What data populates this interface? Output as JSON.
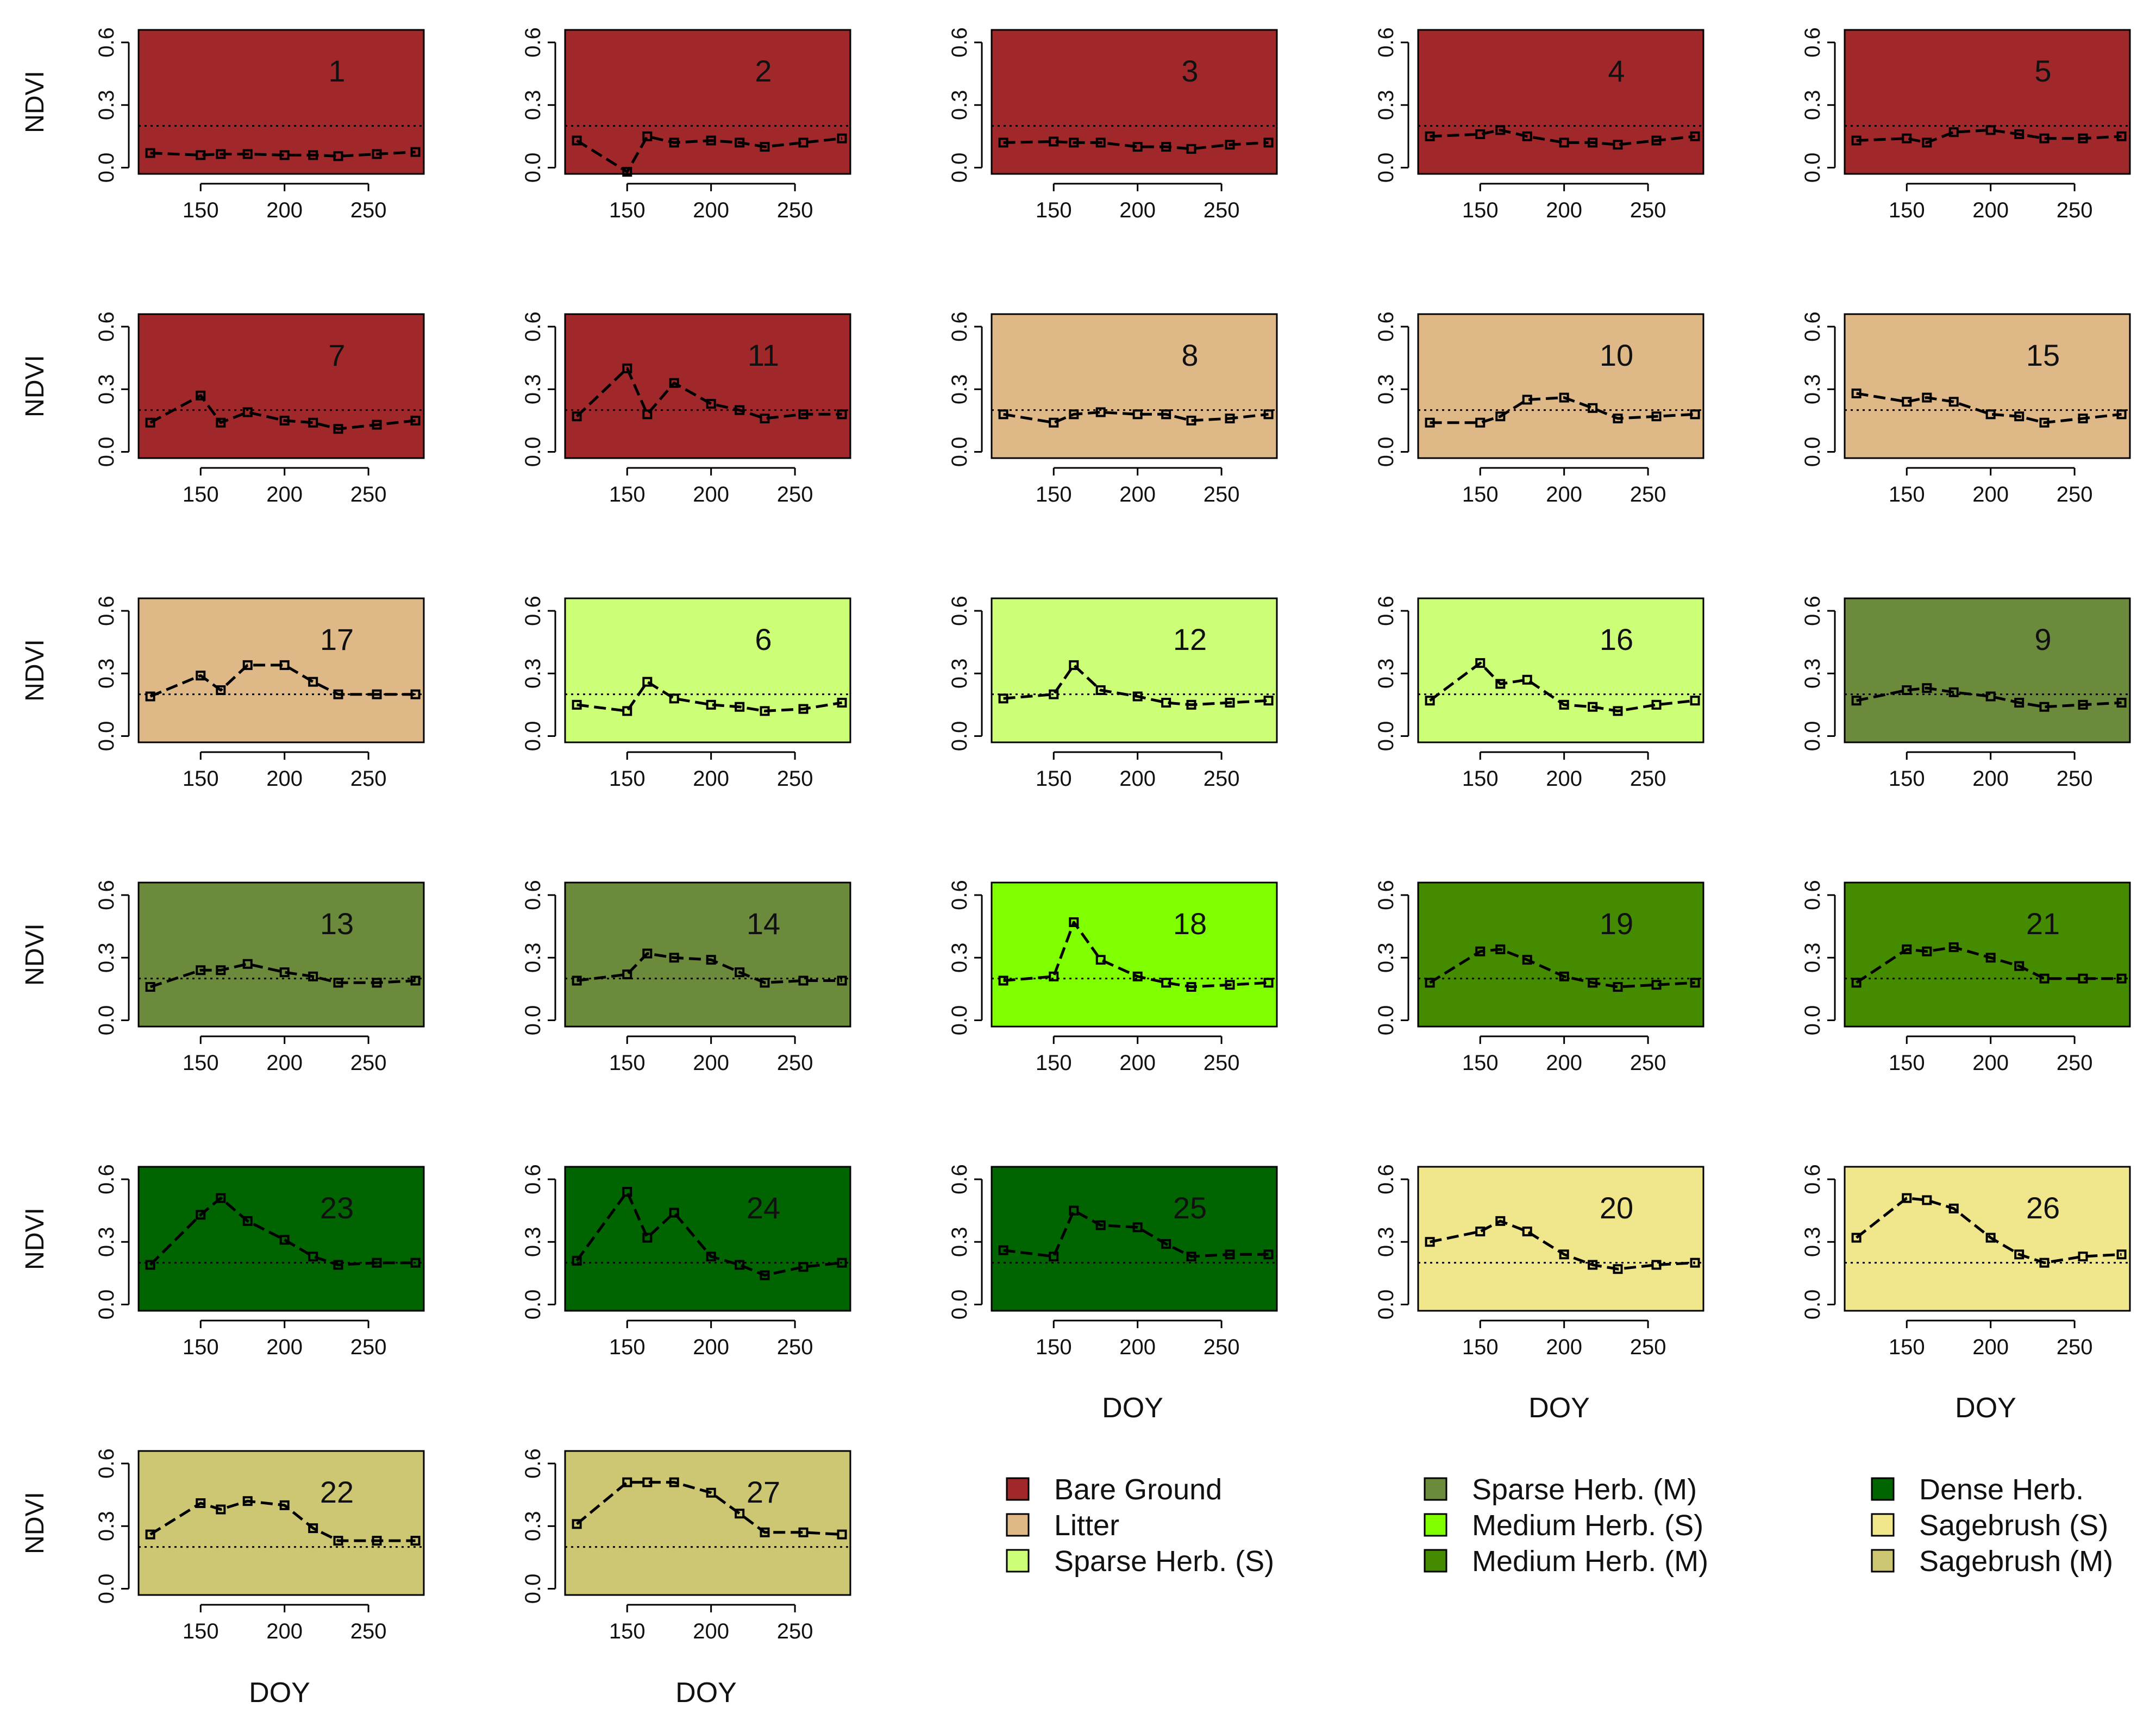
{
  "figure": {
    "ylabel": "NDVI",
    "xlabel": "DOY"
  },
  "chart_data": {
    "type": "line",
    "x_axis": {
      "label": "DOY",
      "range": [
        113,
        283
      ],
      "ticks": [
        150,
        200,
        250
      ]
    },
    "y_axis": {
      "label": "NDVI",
      "range": [
        -0.03,
        0.66
      ],
      "ticks": [
        "0.0",
        "0.3",
        "0.6"
      ]
    },
    "threshold": 0.2,
    "x": [
      120,
      150,
      162,
      178,
      200,
      217,
      232,
      255,
      278
    ],
    "panels": [
      {
        "id": "1",
        "class": "Bare Ground",
        "values": [
          0.07,
          0.06,
          0.065,
          0.065,
          0.06,
          0.06,
          0.055,
          0.065,
          0.075
        ]
      },
      {
        "id": "2",
        "class": "Bare Ground",
        "values": [
          0.13,
          -0.02,
          0.15,
          0.12,
          0.13,
          0.12,
          0.1,
          0.12,
          0.14
        ]
      },
      {
        "id": "3",
        "class": "Bare Ground",
        "values": [
          0.12,
          0.125,
          0.12,
          0.12,
          0.1,
          0.1,
          0.09,
          0.11,
          0.12
        ]
      },
      {
        "id": "4",
        "class": "Bare Ground",
        "values": [
          0.15,
          0.16,
          0.18,
          0.15,
          0.12,
          0.12,
          0.11,
          0.13,
          0.15
        ]
      },
      {
        "id": "5",
        "class": "Bare Ground",
        "values": [
          0.13,
          0.14,
          0.12,
          0.17,
          0.18,
          0.16,
          0.14,
          0.14,
          0.15
        ]
      },
      {
        "id": "7",
        "class": "Bare Ground",
        "values": [
          0.14,
          0.27,
          0.14,
          0.19,
          0.15,
          0.14,
          0.11,
          0.13,
          0.15
        ]
      },
      {
        "id": "11",
        "class": "Bare Ground",
        "values": [
          0.17,
          0.4,
          0.18,
          0.33,
          0.23,
          0.2,
          0.16,
          0.18,
          0.18
        ]
      },
      {
        "id": "8",
        "class": "Litter",
        "values": [
          0.18,
          0.14,
          0.18,
          0.19,
          0.18,
          0.18,
          0.15,
          0.16,
          0.18
        ]
      },
      {
        "id": "10",
        "class": "Litter",
        "values": [
          0.14,
          0.14,
          0.17,
          0.25,
          0.26,
          0.21,
          0.16,
          0.17,
          0.18
        ]
      },
      {
        "id": "15",
        "class": "Litter",
        "values": [
          0.28,
          0.24,
          0.26,
          0.24,
          0.18,
          0.17,
          0.14,
          0.16,
          0.18
        ]
      },
      {
        "id": "17",
        "class": "Litter",
        "values": [
          0.19,
          0.29,
          0.22,
          0.34,
          0.34,
          0.26,
          0.2,
          0.2,
          0.2
        ]
      },
      {
        "id": "6",
        "class": "Sparse Herb. (S)",
        "values": [
          0.15,
          0.12,
          0.26,
          0.18,
          0.15,
          0.14,
          0.12,
          0.13,
          0.16
        ]
      },
      {
        "id": "12",
        "class": "Sparse Herb. (S)",
        "values": [
          0.18,
          0.2,
          0.34,
          0.22,
          0.19,
          0.16,
          0.15,
          0.16,
          0.17
        ]
      },
      {
        "id": "16",
        "class": "Sparse Herb. (S)",
        "values": [
          0.17,
          0.35,
          0.25,
          0.27,
          0.15,
          0.14,
          0.12,
          0.15,
          0.17
        ]
      },
      {
        "id": "9",
        "class": "Sparse Herb. (M)",
        "values": [
          0.17,
          0.22,
          0.23,
          0.21,
          0.19,
          0.16,
          0.14,
          0.15,
          0.16
        ]
      },
      {
        "id": "13",
        "class": "Sparse Herb. (M)",
        "values": [
          0.16,
          0.24,
          0.24,
          0.27,
          0.23,
          0.21,
          0.18,
          0.18,
          0.19
        ]
      },
      {
        "id": "14",
        "class": "Sparse Herb. (M)",
        "values": [
          0.19,
          0.22,
          0.32,
          0.3,
          0.29,
          0.23,
          0.18,
          0.19,
          0.19
        ]
      },
      {
        "id": "18",
        "class": "Medium Herb. (S)",
        "values": [
          0.19,
          0.21,
          0.47,
          0.29,
          0.21,
          0.18,
          0.16,
          0.17,
          0.18
        ]
      },
      {
        "id": "19",
        "class": "Medium Herb. (M)",
        "values": [
          0.18,
          0.33,
          0.34,
          0.29,
          0.21,
          0.18,
          0.16,
          0.17,
          0.18
        ]
      },
      {
        "id": "21",
        "class": "Medium Herb. (M)",
        "values": [
          0.18,
          0.34,
          0.33,
          0.35,
          0.3,
          0.26,
          0.2,
          0.2,
          0.2
        ]
      },
      {
        "id": "23",
        "class": "Dense Herb.",
        "values": [
          0.19,
          0.43,
          0.51,
          0.4,
          0.31,
          0.23,
          0.19,
          0.2,
          0.2
        ]
      },
      {
        "id": "24",
        "class": "Dense Herb.",
        "values": [
          0.21,
          0.54,
          0.32,
          0.44,
          0.23,
          0.19,
          0.14,
          0.18,
          0.2
        ]
      },
      {
        "id": "25",
        "class": "Dense Herb.",
        "values": [
          0.26,
          0.23,
          0.45,
          0.38,
          0.37,
          0.29,
          0.23,
          0.24,
          0.24
        ]
      },
      {
        "id": "20",
        "class": "Sagebrush (S)",
        "values": [
          0.3,
          0.35,
          0.4,
          0.35,
          0.24,
          0.19,
          0.17,
          0.19,
          0.2
        ]
      },
      {
        "id": "26",
        "class": "Sagebrush (S)",
        "values": [
          0.32,
          0.51,
          0.5,
          0.46,
          0.32,
          0.24,
          0.2,
          0.23,
          0.24
        ]
      },
      {
        "id": "22",
        "class": "Sagebrush (M)",
        "values": [
          0.26,
          0.41,
          0.38,
          0.42,
          0.4,
          0.29,
          0.23,
          0.23,
          0.23
        ]
      },
      {
        "id": "27",
        "class": "Sagebrush (M)",
        "values": [
          0.31,
          0.51,
          0.51,
          0.51,
          0.46,
          0.36,
          0.27,
          0.27,
          0.26
        ]
      }
    ],
    "legend": [
      {
        "label": "Bare Ground",
        "color": "#A0282A"
      },
      {
        "label": "Litter",
        "color": "#DEB887"
      },
      {
        "label": "Sparse Herb. (S)",
        "color": "#CCFF77"
      },
      {
        "label": "Sparse Herb. (M)",
        "color": "#6B8A3C"
      },
      {
        "label": "Medium Herb. (S)",
        "color": "#7FFF00"
      },
      {
        "label": "Medium Herb. (M)",
        "color": "#458B00"
      },
      {
        "label": "Dense Herb.",
        "color": "#006400"
      },
      {
        "label": "Sagebrush (S)",
        "color": "#F0E68C"
      },
      {
        "label": "Sagebrush (M)",
        "color": "#CDC673"
      }
    ]
  }
}
